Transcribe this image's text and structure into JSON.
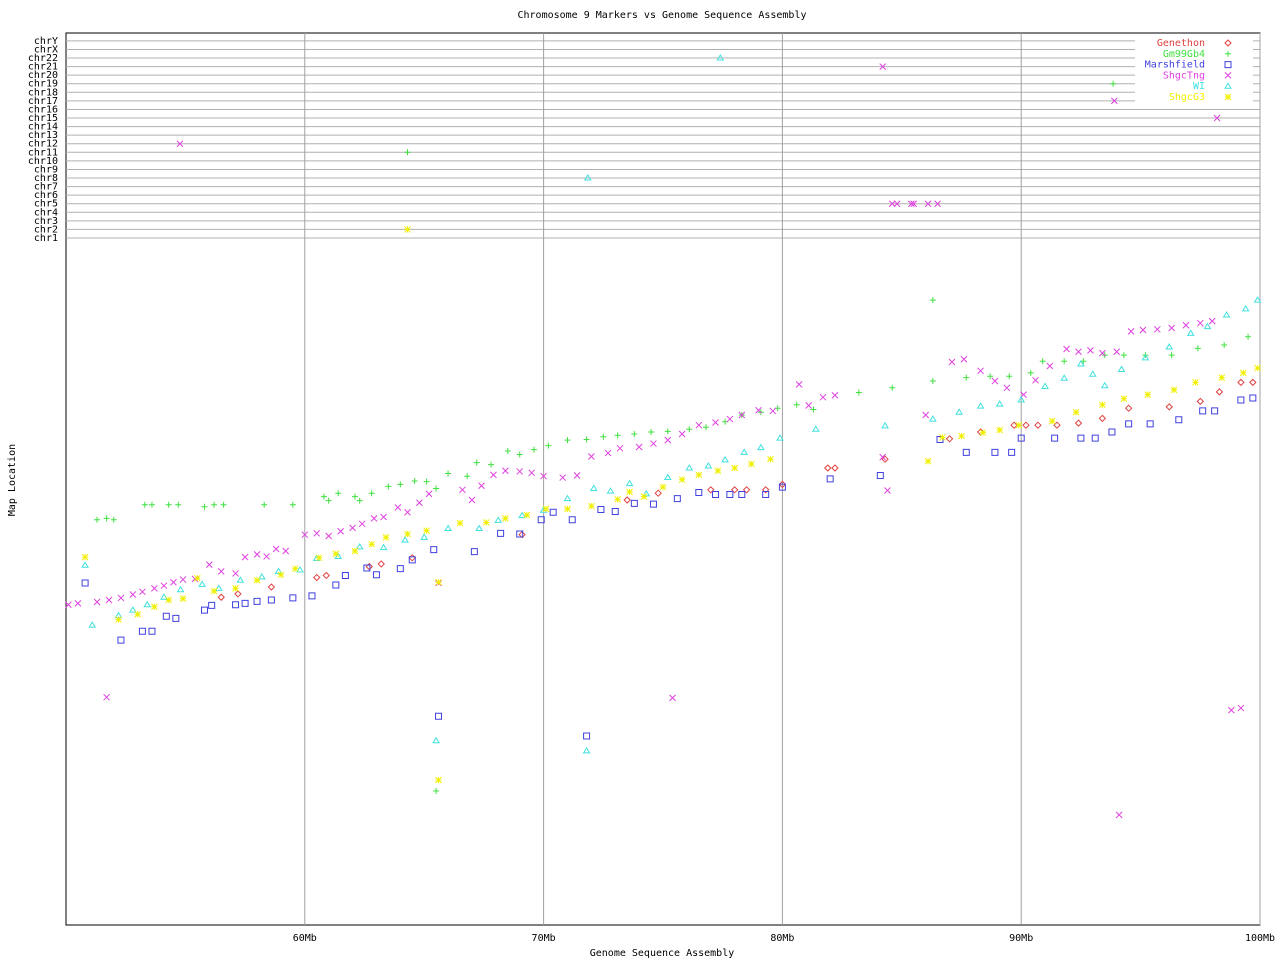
{
  "chart_data": [
    {
      "type": "scatter",
      "categories": [
        "chr1",
        "chr2",
        "chr3",
        "chr4",
        "chr5",
        "chr6",
        "chr7",
        "chr8",
        "chr9",
        "chr10",
        "chr11",
        "chr12",
        "chr13",
        "chr14",
        "chr15",
        "chr16",
        "chr17",
        "chr18",
        "chr19",
        "chr20",
        "chr21",
        "chr22",
        "chrX",
        "chrY"
      ],
      "xlim": [
        50,
        100
      ],
      "series": [
        {
          "color": "#40e040",
          "marker": "plus",
          "x": [
            64.3,
            93.85,
            64.3
          ],
          "values": [
            "chr11",
            "chr19",
            "chr2"
          ]
        },
        {
          "color": "#4040e0",
          "marker": "square",
          "x": [
            96.5
          ],
          "values": [
            "chr19"
          ]
        },
        {
          "color": "#e040e0",
          "marker": "x",
          "x": [
            54.77,
            84.2,
            93.9,
            98.2,
            84.6,
            84.8,
            85.4,
            85.5,
            86.1,
            86.5
          ],
          "values": [
            "chr12",
            "chr21",
            "chr17",
            "chr15",
            "chr5",
            "chr5",
            "chr5",
            "chr5",
            "chr5",
            "chr5"
          ]
        },
        {
          "color": "#40e0e0",
          "marker": "triangle",
          "x": [
            77.4,
            71.85
          ],
          "values": [
            "chr22",
            "chr8"
          ]
        },
        {
          "color": "#f0f000",
          "marker": "star",
          "x": [
            64.3
          ],
          "values": [
            "chr2"
          ]
        }
      ]
    },
    {
      "type": "scatter",
      "title": "Chromosome 9 Markers vs Genome Sequence Assembly",
      "xlabel": "Genome Sequence Assembly",
      "ylabel": "Map Location",
      "xlim": [
        50,
        100
      ],
      "xticks": [
        {
          "value": 60,
          "label": "60Mb"
        },
        {
          "value": 70,
          "label": "70Mb"
        },
        {
          "value": 80,
          "label": "80Mb"
        },
        {
          "value": 90,
          "label": "90Mb"
        },
        {
          "value": 100,
          "label": "100Mb"
        }
      ],
      "ylim": [
        0,
        100
      ],
      "grid": true,
      "legend": "upper right",
      "series": [
        {
          "name": "Genethon",
          "color": "#e04040",
          "marker": "diamond",
          "x": [
            56.5,
            57.2,
            58.6,
            60.5,
            60.9,
            62.7,
            63.2,
            64.5,
            69.1,
            73.5,
            74.8,
            77.0,
            78.0,
            78.5,
            79.3,
            80.0,
            81.9,
            82.2,
            84.3,
            87.0,
            88.3,
            89.7,
            90.2,
            90.7,
            91.5,
            92.4,
            93.4,
            94.5,
            96.2,
            97.5,
            98.3,
            99.2,
            99.7
          ],
          "values": [
            48.2,
            48.7,
            49.7,
            51.1,
            51.4,
            52.7,
            53.1,
            54,
            57.4,
            62.5,
            63.5,
            64,
            64,
            64,
            64,
            64.8,
            67.2,
            67.2,
            68.5,
            71.5,
            72.5,
            73.5,
            73.5,
            73.5,
            73.5,
            73.8,
            74.5,
            76,
            76.2,
            77,
            78.4,
            79.8,
            79.8
          ]
        },
        {
          "name": "Gm99Gb4",
          "color": "#40e040",
          "marker": "plus",
          "x": [
            51.3,
            51.7,
            52.0,
            53.3,
            53.6,
            54.3,
            54.7,
            55.8,
            56.2,
            56.6,
            58.3,
            59.5,
            60.8,
            61.0,
            61.4,
            62.1,
            62.3,
            62.8,
            63.5,
            64.0,
            64.6,
            65.1,
            65.5,
            66.0,
            66.8,
            67.2,
            67.8,
            68.5,
            69.0,
            69.6,
            70.2,
            71.0,
            71.8,
            72.5,
            73.1,
            73.8,
            74.5,
            75.2,
            76.1,
            76.8,
            77.6,
            78.3,
            79.1,
            79.8,
            80.6,
            81.3,
            83.2,
            84.6,
            86.3,
            87.7,
            88.7,
            89.5,
            90.4,
            90.9,
            91.8,
            92.6,
            93.5,
            94.3,
            95.2,
            96.3,
            97.4,
            98.5,
            99.5,
            65.5,
            86.3
          ],
          "values": [
            59.6,
            59.8,
            59.6,
            61.8,
            61.8,
            61.8,
            61.8,
            61.5,
            61.8,
            61.8,
            61.8,
            61.8,
            63,
            62.4,
            63.5,
            63,
            62.4,
            63.5,
            64.5,
            64.8,
            65.3,
            65.2,
            64.2,
            66.4,
            66,
            68,
            67.7,
            69.7,
            69.2,
            69.9,
            70.5,
            71.3,
            71.4,
            71.8,
            72,
            72.2,
            72.5,
            72.6,
            72.9,
            73.2,
            74,
            75,
            75.4,
            76,
            76.5,
            75.8,
            78.3,
            79,
            80,
            80.5,
            80.7,
            80.7,
            81.2,
            82.9,
            82.9,
            82.9,
            83.8,
            83.8,
            83.8,
            83.8,
            84.8,
            85.3,
            86.5,
            19.7,
            91.9
          ]
        },
        {
          "name": "Marshfield",
          "color": "#4040e0",
          "marker": "square",
          "x": [
            50.8,
            52.3,
            53.2,
            53.6,
            54.2,
            54.6,
            55.8,
            56.1,
            57.1,
            57.5,
            58.0,
            58.6,
            59.5,
            60.3,
            61.3,
            61.7,
            62.6,
            63.0,
            64.0,
            64.5,
            65.4,
            67.1,
            68.2,
            69.0,
            69.9,
            70.4,
            71.2,
            72.4,
            73.0,
            73.8,
            74.6,
            75.6,
            76.5,
            77.2,
            77.8,
            78.3,
            79.3,
            80.0,
            82.0,
            84.1,
            86.6,
            87.7,
            88.9,
            89.6,
            90.0,
            91.4,
            92.5,
            93.1,
            93.8,
            94.5,
            95.4,
            96.6,
            97.6,
            98.1,
            99.2,
            99.7,
            65.6,
            71.8
          ],
          "values": [
            50.3,
            41.9,
            43.2,
            43.2,
            45.4,
            45.1,
            46.3,
            47,
            47.1,
            47.3,
            47.6,
            47.8,
            48.1,
            48.4,
            50,
            51.4,
            52.5,
            51.5,
            52.4,
            53.7,
            55.2,
            54.9,
            57.6,
            57.5,
            59.6,
            60.7,
            59.6,
            61.1,
            60.8,
            62,
            61.9,
            62.7,
            63.6,
            63.3,
            63.3,
            63.3,
            63.3,
            64.4,
            65.6,
            66.1,
            71.4,
            69.5,
            69.5,
            69.5,
            71.6,
            71.6,
            71.6,
            71.6,
            72.5,
            73.7,
            73.7,
            74.3,
            75.6,
            75.6,
            77.2,
            77.5,
            30.7,
            27.8
          ]
        },
        {
          "name": "ShgcTng",
          "color": "#e040e0",
          "marker": "x",
          "x": [
            50.1,
            50.5,
            51.3,
            51.8,
            52.3,
            52.8,
            53.2,
            53.7,
            54.1,
            54.5,
            54.9,
            55.4,
            56.0,
            56.5,
            57.1,
            57.5,
            58.0,
            58.4,
            58.8,
            59.2,
            60.0,
            60.5,
            61.0,
            61.5,
            62.0,
            62.4,
            62.9,
            63.3,
            63.9,
            64.3,
            64.8,
            65.2,
            65.6,
            66.6,
            67.0,
            67.4,
            67.9,
            68.4,
            69.0,
            69.5,
            70.0,
            70.8,
            71.4,
            72.0,
            72.7,
            73.2,
            74.0,
            74.6,
            75.2,
            75.8,
            76.5,
            77.2,
            77.8,
            78.3,
            79.0,
            79.6,
            80.7,
            81.1,
            81.7,
            82.2,
            84.2,
            84.4,
            86.0,
            87.1,
            87.6,
            88.3,
            88.9,
            89.4,
            90.1,
            90.6,
            91.2,
            91.9,
            92.4,
            92.9,
            93.4,
            94.0,
            94.6,
            95.1,
            95.7,
            96.3,
            96.9,
            97.5,
            98.0,
            51.7,
            75.4,
            94.1,
            98.8,
            99.2
          ],
          "values": [
            47.1,
            47.3,
            47.5,
            47.8,
            48.1,
            48.6,
            49,
            49.5,
            49.9,
            50.4,
            50.8,
            50.9,
            53,
            52,
            51.7,
            54.1,
            54.5,
            54.2,
            55.3,
            55,
            57.4,
            57.6,
            57.2,
            57.9,
            58.4,
            59,
            59.8,
            60,
            61.4,
            60.7,
            62.1,
            63.4,
            50.3,
            64,
            62.5,
            64.6,
            66.2,
            66.8,
            66.7,
            66.5,
            66,
            65.8,
            66.1,
            68.9,
            69.4,
            70.1,
            70.3,
            70.8,
            71.3,
            72.2,
            73.5,
            73.9,
            74.4,
            75,
            75.7,
            75.6,
            79.5,
            76.4,
            77.6,
            77.9,
            68.8,
            63.9,
            75,
            82.8,
            83.2,
            81.5,
            80,
            79,
            78,
            80.1,
            82.2,
            84.7,
            84.3,
            84.5,
            84.1,
            84.3,
            87.3,
            87.5,
            87.6,
            87.8,
            88.2,
            88.5,
            88.8,
            33.5,
            33.4,
            16.2,
            31.6,
            31.9
          ]
        },
        {
          "name": "WI",
          "color": "#40e0e0",
          "marker": "triangle",
          "x": [
            50.8,
            51.1,
            52.2,
            52.8,
            53.4,
            54.1,
            54.8,
            55.7,
            56.4,
            57.3,
            58.2,
            58.9,
            59.8,
            60.5,
            61.4,
            62.3,
            63.3,
            64.2,
            65.0,
            66.0,
            67.3,
            68.1,
            69.1,
            70.0,
            71.0,
            72.1,
            72.8,
            73.6,
            74.3,
            75.2,
            76.1,
            76.9,
            77.6,
            78.4,
            79.1,
            79.9,
            81.4,
            84.3,
            86.3,
            87.4,
            88.3,
            89.1,
            90.0,
            91.0,
            91.8,
            92.5,
            93.0,
            93.5,
            94.2,
            95.2,
            96.2,
            97.1,
            97.8,
            98.6,
            99.4,
            99.9,
            65.5,
            71.8
          ],
          "values": [
            52.9,
            44.1,
            45.5,
            46.3,
            47.1,
            48.2,
            49.3,
            50.1,
            49.5,
            50.7,
            51.2,
            52,
            52.2,
            53.9,
            54.2,
            55.6,
            55.5,
            56.6,
            57,
            58.3,
            58.3,
            59.5,
            60.2,
            61,
            62.7,
            64.2,
            63.8,
            64.9,
            63.4,
            65.8,
            67.2,
            67.5,
            68.4,
            69.5,
            70.2,
            71.6,
            72.9,
            73.4,
            74.4,
            75.4,
            76.3,
            76.6,
            77.2,
            79.2,
            80.4,
            82.5,
            81,
            79.3,
            81.7,
            83.4,
            85,
            87,
            88,
            89.7,
            90.6,
            91.9,
            27.1,
            25.6
          ]
        },
        {
          "name": "ShgcG3",
          "color": "#f0f000",
          "marker": "star",
          "x": [
            50.8,
            52.2,
            53.0,
            53.7,
            54.3,
            54.9,
            55.5,
            56.2,
            57.1,
            58.0,
            59.0,
            59.6,
            60.6,
            61.3,
            62.1,
            62.8,
            63.4,
            64.3,
            65.1,
            65.6,
            66.5,
            67.6,
            68.4,
            69.3,
            70.1,
            71.0,
            72.0,
            73.1,
            73.6,
            74.2,
            75.0,
            75.8,
            76.5,
            77.3,
            78.0,
            78.7,
            79.5,
            86.1,
            86.7,
            87.5,
            88.4,
            89.1,
            89.9,
            91.3,
            92.3,
            93.4,
            94.3,
            95.3,
            96.4,
            97.3,
            98.4,
            99.3,
            99.9,
            65.6
          ],
          "values": [
            54.1,
            44.9,
            45.7,
            46.8,
            47.8,
            48,
            51,
            49.1,
            49.5,
            50.7,
            51.5,
            52.4,
            54,
            54.6,
            55,
            56,
            57,
            57.5,
            58,
            50.4,
            59.1,
            59.2,
            59.8,
            60.3,
            61.2,
            61.2,
            61.6,
            62.6,
            63.7,
            63,
            64.4,
            65.5,
            66.2,
            66.8,
            67.2,
            67.8,
            68.5,
            68.2,
            71.7,
            71.9,
            72.4,
            72.8,
            73.5,
            74.1,
            75.4,
            76.5,
            77.4,
            78,
            78.7,
            79.8,
            80.5,
            81.2,
            81.9,
            21.3
          ]
        }
      ]
    }
  ]
}
